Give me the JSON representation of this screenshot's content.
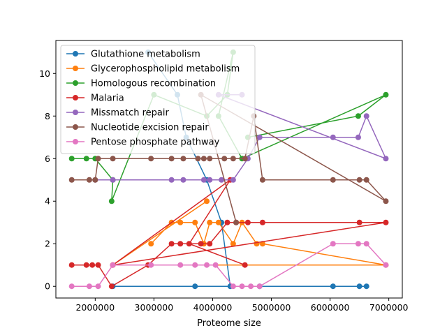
{
  "chart_data": {
    "type": "line",
    "xlabel": "Proteome size",
    "ylabel": "",
    "xlim": [
      1330000,
      7230000
    ],
    "ylim": [
      -0.55,
      11.55
    ],
    "x_ticks": [
      2000000,
      3000000,
      4000000,
      5000000,
      6000000,
      7000000
    ],
    "x_tick_labels": [
      "2000000",
      "3000000",
      "4000000",
      "5000000",
      "6000000",
      "7000000"
    ],
    "y_ticks": [
      0,
      2,
      4,
      6,
      8,
      10
    ],
    "y_tick_labels": [
      "0",
      "2",
      "4",
      "6",
      "8",
      "10"
    ],
    "grid": false,
    "legend_position": "top-left",
    "series": [
      {
        "name": "Glutathione metabolism",
        "color": "#1f77b4",
        "x": [
          2900000,
          3400000,
          3550000,
          3900000,
          4150000,
          4300000,
          6050000,
          6500000,
          6620000,
          4800000,
          3700000,
          2300000
        ],
        "y": [
          11,
          9,
          7,
          5,
          3,
          0,
          0,
          0,
          0,
          0,
          0,
          0
        ]
      },
      {
        "name": "Glycerophospholipid metabolism",
        "color": "#ff7f0e",
        "x": [
          2950000,
          3300000,
          3450000,
          3700000,
          3850000,
          3950000,
          4100000,
          4350000,
          4500000,
          4750000,
          4850000,
          6950000,
          2300000,
          3900000
        ],
        "y": [
          2,
          3,
          3,
          3,
          2,
          3,
          3,
          2,
          3,
          2,
          2,
          1,
          1,
          4
        ]
      },
      {
        "name": "Homologous recombination",
        "color": "#2ca02c",
        "x": [
          1600000,
          1850000,
          2000000,
          2300000,
          2280000,
          3000000,
          3900000,
          4250000,
          4350000,
          4100000,
          4500000,
          6950000,
          6480000,
          4600000
        ],
        "y": [
          6,
          6,
          6,
          5,
          4,
          9,
          8,
          9,
          11,
          8,
          6,
          9,
          8,
          7
        ]
      },
      {
        "name": "Malaria",
        "color": "#d62728",
        "x": [
          1600000,
          1850000,
          1950000,
          2050000,
          2280000,
          2900000,
          3300000,
          3450000,
          3800000,
          3950000,
          4250000,
          4400000,
          4600000,
          4850000,
          6500000,
          6950000,
          2300000,
          4300000,
          3600000,
          4550000
        ],
        "y": [
          1,
          1,
          1,
          1,
          0,
          1,
          2,
          2,
          2,
          2,
          3,
          3,
          3,
          3,
          3,
          3,
          1,
          5,
          2,
          1
        ]
      },
      {
        "name": "Missmatch repair",
        "color": "#9467bd",
        "x": [
          2000000,
          2300000,
          3300000,
          3500000,
          3850000,
          3950000,
          4150000,
          4350000,
          4600000,
          4800000,
          6050000,
          6480000,
          6620000,
          6950000,
          4100000,
          4500000
        ],
        "y": [
          5,
          5,
          5,
          5,
          5,
          5,
          5,
          5,
          6,
          7,
          7,
          7,
          8,
          6,
          9,
          9
        ]
      },
      {
        "name": "Nucleotide excision repair",
        "color": "#8c564b",
        "x": [
          1600000,
          1900000,
          2000000,
          2050000,
          2300000,
          2950000,
          3300000,
          3500000,
          3750000,
          3850000,
          3950000,
          4200000,
          4350000,
          4550000,
          4700000,
          4850000,
          6050000,
          6500000,
          6620000,
          6950000,
          3800000,
          4400000
        ],
        "y": [
          5,
          5,
          5,
          6,
          6,
          6,
          6,
          6,
          6,
          6,
          6,
          6,
          6,
          6,
          8,
          5,
          5,
          5,
          5,
          4,
          9,
          3
        ]
      },
      {
        "name": "Pentose phosphate pathway",
        "color": "#e377c2",
        "x": [
          1600000,
          1900000,
          2050000,
          2300000,
          2950000,
          3450000,
          3700000,
          3900000,
          4050000,
          4350000,
          4500000,
          4650000,
          4800000,
          6050000,
          6480000,
          6620000,
          6950000
        ],
        "y": [
          0,
          0,
          0,
          1,
          1,
          1,
          1,
          1,
          1,
          0,
          0,
          0,
          0,
          2,
          2,
          2,
          1
        ]
      }
    ]
  }
}
